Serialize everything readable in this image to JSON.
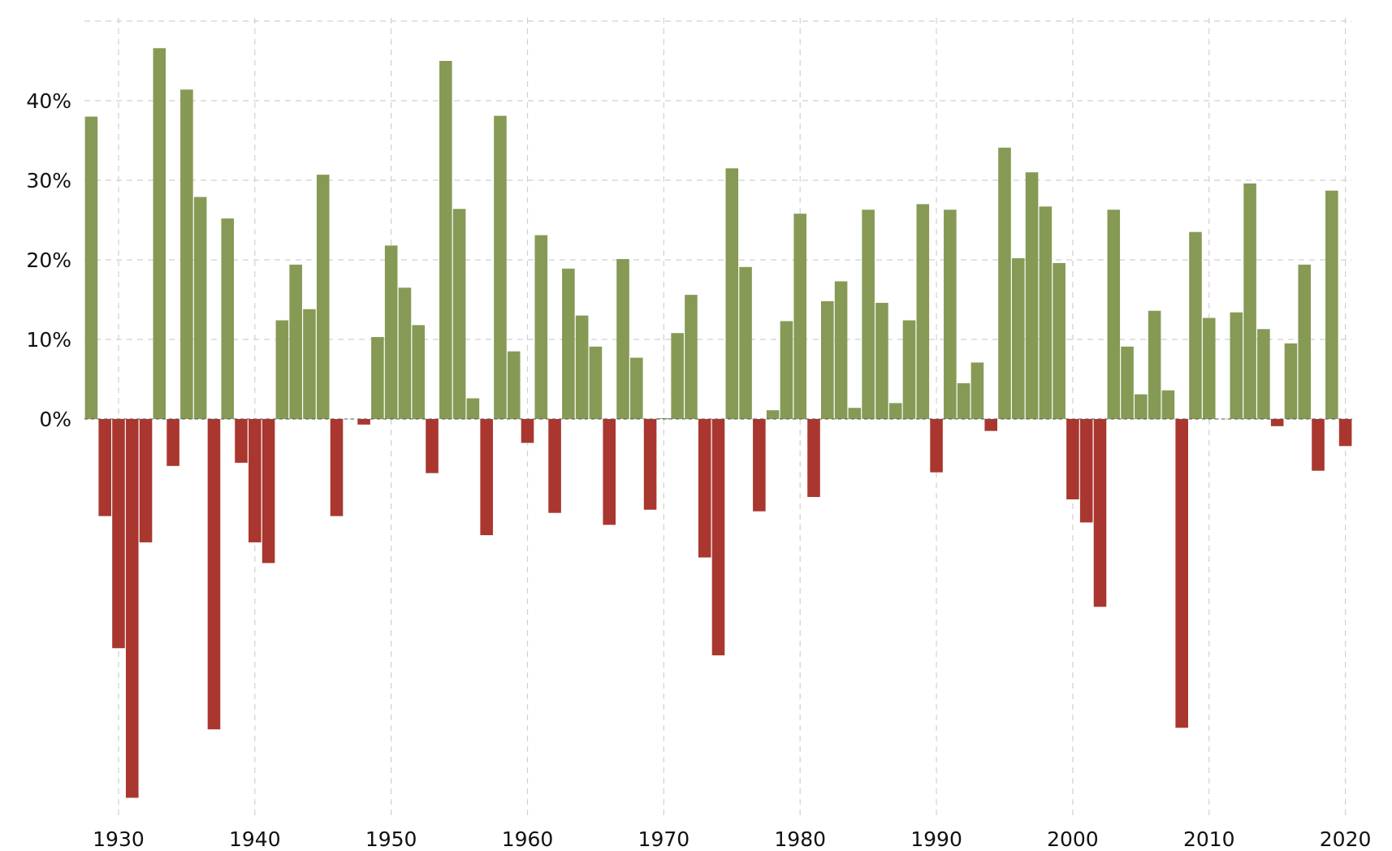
{
  "chart_data": {
    "type": "bar",
    "xlabel": "",
    "ylabel": "",
    "xlim": [
      1927.5,
      2020.5
    ],
    "ylim": [
      -50,
      52
    ],
    "grid": true,
    "legend": "none",
    "colors": {
      "positive": "#869a55",
      "negative": "#a9372f",
      "grid": "#d0d0d0"
    },
    "y_ticks": [
      {
        "value": 0,
        "label": "0%"
      },
      {
        "value": 10,
        "label": "10%"
      },
      {
        "value": 20,
        "label": "20%"
      },
      {
        "value": 30,
        "label": "30%"
      },
      {
        "value": 40,
        "label": "40%"
      }
    ],
    "x_ticks": [
      {
        "value": 1930,
        "label": "1930"
      },
      {
        "value": 1940,
        "label": "1940"
      },
      {
        "value": 1950,
        "label": "1950"
      },
      {
        "value": 1960,
        "label": "1960"
      },
      {
        "value": 1970,
        "label": "1970"
      },
      {
        "value": 1980,
        "label": "1980"
      },
      {
        "value": 1990,
        "label": "1990"
      },
      {
        "value": 2000,
        "label": "2000"
      },
      {
        "value": 2010,
        "label": "2010"
      },
      {
        "value": 2020,
        "label": "2020"
      }
    ],
    "x_grid": [
      1930,
      1940,
      1950,
      1960,
      1970,
      1980,
      1990,
      2000,
      2010,
      2020
    ],
    "y_grid": [
      0,
      10,
      20,
      30,
      40,
      50
    ],
    "categories": [
      1928,
      1929,
      1930,
      1931,
      1932,
      1933,
      1934,
      1935,
      1936,
      1937,
      1938,
      1939,
      1940,
      1941,
      1942,
      1943,
      1944,
      1945,
      1946,
      1947,
      1948,
      1949,
      1950,
      1951,
      1952,
      1953,
      1954,
      1955,
      1956,
      1957,
      1958,
      1959,
      1960,
      1961,
      1962,
      1963,
      1964,
      1965,
      1966,
      1967,
      1968,
      1969,
      1970,
      1971,
      1972,
      1973,
      1974,
      1975,
      1976,
      1977,
      1978,
      1979,
      1980,
      1981,
      1982,
      1983,
      1984,
      1985,
      1986,
      1987,
      1988,
      1989,
      1990,
      1991,
      1992,
      1993,
      1994,
      1995,
      1996,
      1997,
      1998,
      1999,
      2000,
      2001,
      2002,
      2003,
      2004,
      2005,
      2006,
      2007,
      2008,
      2009,
      2010,
      2011,
      2012,
      2013,
      2014,
      2015,
      2016,
      2017,
      2018,
      2019,
      2020
    ],
    "values": [
      38.0,
      -12.2,
      -28.8,
      -47.6,
      -15.5,
      46.6,
      -5.9,
      41.4,
      27.9,
      -39.0,
      25.2,
      -5.5,
      -15.5,
      -18.1,
      12.4,
      19.4,
      13.8,
      30.7,
      -12.2,
      0.0,
      -0.7,
      10.3,
      21.8,
      16.5,
      11.8,
      -6.8,
      45.0,
      26.4,
      2.6,
      -14.6,
      38.1,
      8.5,
      -3.0,
      23.1,
      -11.8,
      18.9,
      13.0,
      9.1,
      -13.3,
      20.1,
      7.7,
      -11.4,
      0.1,
      10.8,
      15.6,
      -17.4,
      -29.7,
      31.5,
      19.1,
      -11.6,
      1.1,
      12.3,
      25.8,
      -9.8,
      14.8,
      17.3,
      1.4,
      26.3,
      14.6,
      2.0,
      12.4,
      27.0,
      -6.7,
      26.3,
      4.5,
      7.1,
      -1.5,
      34.1,
      20.2,
      31.0,
      26.7,
      19.6,
      -10.1,
      -13.0,
      -23.6,
      26.3,
      9.1,
      3.1,
      13.6,
      3.6,
      -38.8,
      23.5,
      12.7,
      0.0,
      13.4,
      29.6,
      11.3,
      -0.9,
      9.5,
      19.4,
      -6.5,
      28.7,
      -3.4
    ]
  }
}
